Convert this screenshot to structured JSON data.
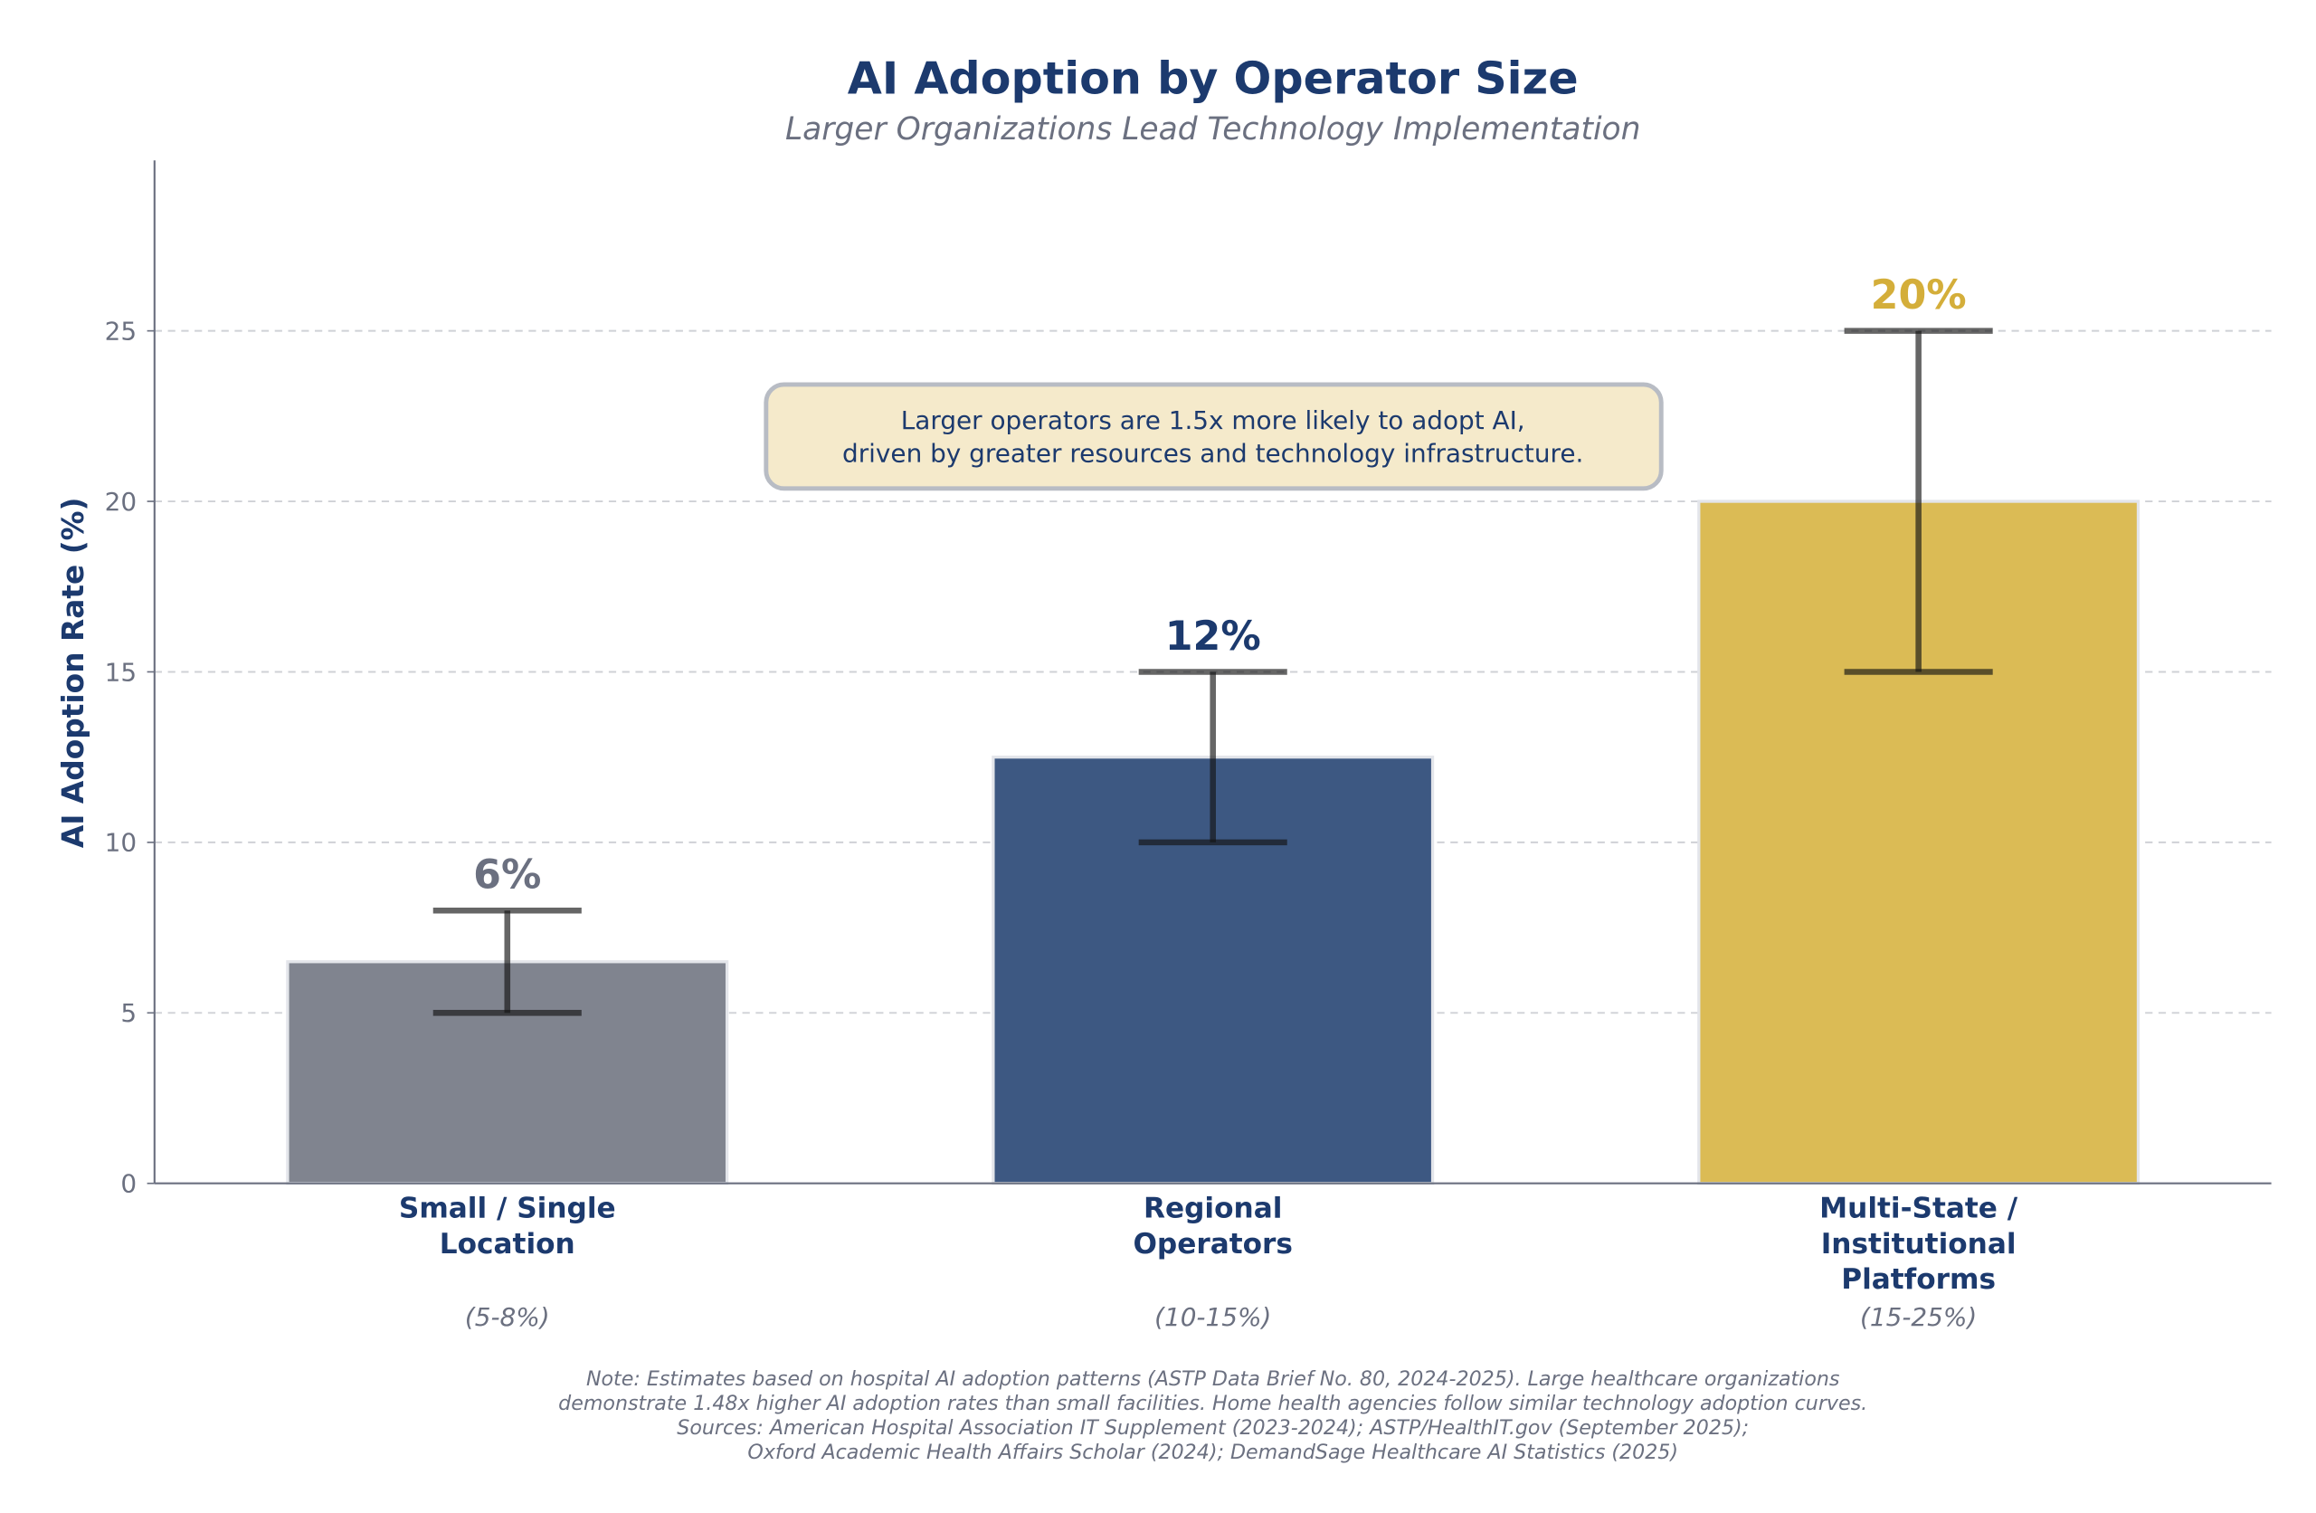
{
  "chart_data": {
    "type": "bar",
    "title": "AI Adoption by Operator Size",
    "subtitle": "Larger Organizations Lead Technology Implementation",
    "xlabel": "",
    "ylabel": "AI Adoption Rate (%)",
    "ylim": [
      0,
      30
    ],
    "yticks": [
      0,
      5,
      10,
      15,
      20,
      25
    ],
    "grid": "horizontal dashed",
    "categories": [
      "Small / Single\nLocation",
      "Regional\nOperators",
      "Multi-State /\nInstitutional\nPlatforms"
    ],
    "ranges": [
      "(5-8%)",
      "(10-15%)",
      "(15-25%)"
    ],
    "values": [
      6.5,
      12.5,
      20
    ],
    "error_low": [
      5,
      10,
      15
    ],
    "error_high": [
      8,
      15,
      25
    ],
    "data_labels": [
      "6%",
      "12%",
      "20%"
    ],
    "colors": [
      "#80848f",
      "#3d5882",
      "#dbbb55"
    ],
    "label_colors": [
      "#6b7080",
      "#1c3a6e",
      "#d4ae3a"
    ],
    "annotation": "Larger operators are 1.5x more likely to adopt AI,\ndriven by greater resources and technology infrastructure.",
    "note": "Note: Estimates based on hospital AI adoption patterns (ASTP Data Brief No. 80, 2024-2025). Large healthcare organizations\ndemonstrate 1.48x higher AI adoption rates than small facilities. Home health agencies follow similar technology adoption curves.\nSources: American Hospital Association IT Supplement (2023-2024); ASTP/HealthIT.gov (September 2025);\nOxford Academic Health Affairs Scholar (2024); DemandSage Healthcare AI Statistics (2025)"
  }
}
